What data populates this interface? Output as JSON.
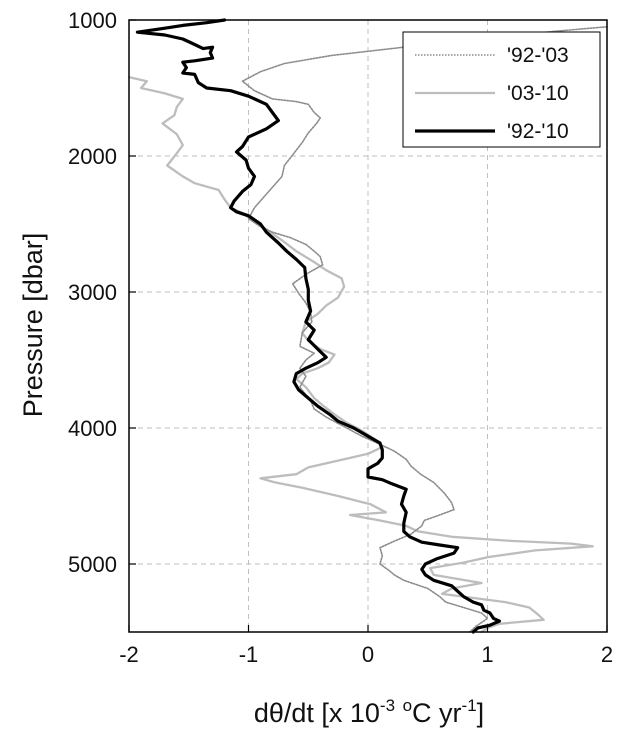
{
  "chart_data": {
    "type": "line",
    "title": "",
    "xlabel_parts": {
      "a": "dθ/dt [x 10",
      "b": "-3",
      "c": " ",
      "d": "o",
      "e": "C yr",
      "f": "-1",
      "g": "]"
    },
    "ylabel": "Pressure [dbar]",
    "xlim": [
      -2,
      2
    ],
    "ylim": [
      1000,
      5500
    ],
    "y_inverted": true,
    "grid": true,
    "legend_position": "top-right",
    "x_ticks": [
      {
        "value": -2,
        "label": "-2"
      },
      {
        "value": -1,
        "label": "-1"
      },
      {
        "value": 0,
        "label": "0"
      },
      {
        "value": 1,
        "label": "1"
      },
      {
        "value": 2,
        "label": "2"
      }
    ],
    "y_ticks": [
      {
        "value": 1000,
        "label": "1000"
      },
      {
        "value": 2000,
        "label": "2000"
      },
      {
        "value": 3000,
        "label": "3000"
      },
      {
        "value": 4000,
        "label": "4000"
      },
      {
        "value": 5000,
        "label": "5000"
      }
    ],
    "series": [
      {
        "name": "'92-'03",
        "color": "#8c8c8c",
        "style": "dotted",
        "points": [
          [
            2.0,
            1050
          ],
          [
            1.6,
            1080
          ],
          [
            1.0,
            1130
          ],
          [
            0.3,
            1200
          ],
          [
            -0.3,
            1260
          ],
          [
            -0.7,
            1320
          ],
          [
            -0.9,
            1380
          ],
          [
            -1.05,
            1450
          ],
          [
            -0.95,
            1520
          ],
          [
            -0.8,
            1580
          ],
          [
            -0.6,
            1600
          ],
          [
            -0.5,
            1620
          ],
          [
            -0.45,
            1680
          ],
          [
            -0.4,
            1720
          ],
          [
            -0.43,
            1760
          ],
          [
            -0.5,
            1830
          ],
          [
            -0.55,
            1900
          ],
          [
            -0.62,
            1980
          ],
          [
            -0.7,
            2070
          ],
          [
            -0.72,
            2150
          ],
          [
            -0.8,
            2230
          ],
          [
            -0.87,
            2300
          ],
          [
            -0.95,
            2380
          ],
          [
            -1.0,
            2460
          ],
          [
            -0.9,
            2520
          ],
          [
            -0.8,
            2560
          ],
          [
            -0.65,
            2600
          ],
          [
            -0.52,
            2650
          ],
          [
            -0.45,
            2700
          ],
          [
            -0.4,
            2740
          ],
          [
            -0.38,
            2800
          ],
          [
            -0.52,
            2870
          ],
          [
            -0.63,
            2940
          ],
          [
            -0.58,
            3010
          ],
          [
            -0.52,
            3080
          ],
          [
            -0.48,
            3150
          ],
          [
            -0.47,
            3220
          ],
          [
            -0.55,
            3300
          ],
          [
            -0.57,
            3400
          ],
          [
            -0.45,
            3450
          ],
          [
            -0.52,
            3500
          ],
          [
            -0.57,
            3560
          ],
          [
            -0.52,
            3620
          ],
          [
            -0.57,
            3700
          ],
          [
            -0.48,
            3800
          ],
          [
            -0.45,
            3860
          ],
          [
            -0.35,
            3920
          ],
          [
            -0.22,
            3980
          ],
          [
            -0.05,
            4060
          ],
          [
            0.1,
            4120
          ],
          [
            0.22,
            4170
          ],
          [
            0.32,
            4230
          ],
          [
            0.36,
            4280
          ],
          [
            0.44,
            4340
          ],
          [
            0.55,
            4400
          ],
          [
            0.64,
            4480
          ],
          [
            0.7,
            4550
          ],
          [
            0.72,
            4600
          ],
          [
            0.6,
            4640
          ],
          [
            0.47,
            4680
          ],
          [
            0.45,
            4720
          ],
          [
            0.36,
            4780
          ],
          [
            0.2,
            4840
          ],
          [
            0.1,
            4880
          ],
          [
            0.12,
            4940
          ],
          [
            0.1,
            5000
          ],
          [
            0.18,
            5050
          ],
          [
            0.22,
            5080
          ],
          [
            0.3,
            5120
          ],
          [
            0.5,
            5180
          ],
          [
            0.6,
            5240
          ],
          [
            0.65,
            5280
          ],
          [
            0.8,
            5320
          ],
          [
            0.95,
            5360
          ],
          [
            1.0,
            5400
          ],
          [
            0.9,
            5460
          ],
          [
            0.85,
            5500
          ]
        ]
      },
      {
        "name": "'03-'10",
        "color": "#bdbdbd",
        "style": "solid",
        "points": [
          [
            -2.0,
            1420
          ],
          [
            -1.85,
            1450
          ],
          [
            -1.9,
            1500
          ],
          [
            -1.7,
            1540
          ],
          [
            -1.55,
            1580
          ],
          [
            -1.6,
            1640
          ],
          [
            -1.62,
            1700
          ],
          [
            -1.72,
            1760
          ],
          [
            -1.6,
            1840
          ],
          [
            -1.55,
            1920
          ],
          [
            -1.6,
            1980
          ],
          [
            -1.68,
            2070
          ],
          [
            -1.55,
            2150
          ],
          [
            -1.45,
            2200
          ],
          [
            -1.25,
            2250
          ],
          [
            -1.2,
            2320
          ],
          [
            -1.15,
            2380
          ],
          [
            -1.05,
            2420
          ],
          [
            -0.95,
            2480
          ],
          [
            -0.85,
            2540
          ],
          [
            -0.72,
            2620
          ],
          [
            -0.6,
            2700
          ],
          [
            -0.45,
            2780
          ],
          [
            -0.35,
            2840
          ],
          [
            -0.22,
            2900
          ],
          [
            -0.2,
            2960
          ],
          [
            -0.25,
            3040
          ],
          [
            -0.35,
            3100
          ],
          [
            -0.42,
            3160
          ],
          [
            -0.52,
            3220
          ],
          [
            -0.55,
            3300
          ],
          [
            -0.5,
            3360
          ],
          [
            -0.4,
            3420
          ],
          [
            -0.28,
            3460
          ],
          [
            -0.33,
            3520
          ],
          [
            -0.42,
            3560
          ],
          [
            -0.55,
            3600
          ],
          [
            -0.6,
            3640
          ],
          [
            -0.52,
            3700
          ],
          [
            -0.45,
            3780
          ],
          [
            -0.37,
            3840
          ],
          [
            -0.28,
            3900
          ],
          [
            -0.18,
            3960
          ],
          [
            -0.05,
            4020
          ],
          [
            0.05,
            4080
          ],
          [
            0.12,
            4140
          ],
          [
            0.0,
            4190
          ],
          [
            -0.25,
            4240
          ],
          [
            -0.5,
            4290
          ],
          [
            -0.6,
            4340
          ],
          [
            -0.9,
            4370
          ],
          [
            -0.78,
            4400
          ],
          [
            -0.55,
            4440
          ],
          [
            -0.25,
            4500
          ],
          [
            0.02,
            4560
          ],
          [
            0.15,
            4620
          ],
          [
            -0.15,
            4640
          ],
          [
            0.1,
            4680
          ],
          [
            0.32,
            4720
          ],
          [
            0.42,
            4760
          ],
          [
            0.7,
            4800
          ],
          [
            1.2,
            4830
          ],
          [
            1.7,
            4850
          ],
          [
            1.88,
            4870
          ],
          [
            1.4,
            4900
          ],
          [
            1.0,
            4950
          ],
          [
            0.8,
            4990
          ],
          [
            0.52,
            5030
          ],
          [
            0.55,
            5080
          ],
          [
            0.95,
            5140
          ],
          [
            0.7,
            5180
          ],
          [
            0.62,
            5220
          ],
          [
            1.15,
            5280
          ],
          [
            1.35,
            5320
          ],
          [
            1.42,
            5370
          ],
          [
            1.47,
            5410
          ],
          [
            1.1,
            5440
          ],
          [
            1.0,
            5470
          ],
          [
            0.95,
            5500
          ]
        ]
      },
      {
        "name": "'92-'10",
        "color": "#000000",
        "style": "solid-thick",
        "points": [
          [
            -1.2,
            1000
          ],
          [
            -1.35,
            1020
          ],
          [
            -1.55,
            1040
          ],
          [
            -1.7,
            1060
          ],
          [
            -1.93,
            1090
          ],
          [
            -1.7,
            1110
          ],
          [
            -1.55,
            1140
          ],
          [
            -1.45,
            1180
          ],
          [
            -1.38,
            1210
          ],
          [
            -1.3,
            1200
          ],
          [
            -1.32,
            1240
          ],
          [
            -1.3,
            1280
          ],
          [
            -1.45,
            1300
          ],
          [
            -1.55,
            1310
          ],
          [
            -1.52,
            1350
          ],
          [
            -1.55,
            1390
          ],
          [
            -1.45,
            1400
          ],
          [
            -1.42,
            1460
          ],
          [
            -1.35,
            1500
          ],
          [
            -1.15,
            1520
          ],
          [
            -1.0,
            1560
          ],
          [
            -0.85,
            1620
          ],
          [
            -0.8,
            1680
          ],
          [
            -0.75,
            1740
          ],
          [
            -0.85,
            1800
          ],
          [
            -1.0,
            1860
          ],
          [
            -1.05,
            1930
          ],
          [
            -1.1,
            1970
          ],
          [
            -1.02,
            2030
          ],
          [
            -1.0,
            2090
          ],
          [
            -0.95,
            2150
          ],
          [
            -0.98,
            2210
          ],
          [
            -1.05,
            2260
          ],
          [
            -1.12,
            2330
          ],
          [
            -1.15,
            2380
          ],
          [
            -1.1,
            2410
          ],
          [
            -1.0,
            2440
          ],
          [
            -0.9,
            2500
          ],
          [
            -0.85,
            2560
          ],
          [
            -0.75,
            2640
          ],
          [
            -0.68,
            2700
          ],
          [
            -0.6,
            2760
          ],
          [
            -0.53,
            2820
          ],
          [
            -0.52,
            2900
          ],
          [
            -0.5,
            2980
          ],
          [
            -0.5,
            3060
          ],
          [
            -0.48,
            3140
          ],
          [
            -0.52,
            3220
          ],
          [
            -0.45,
            3280
          ],
          [
            -0.5,
            3350
          ],
          [
            -0.42,
            3420
          ],
          [
            -0.35,
            3480
          ],
          [
            -0.42,
            3520
          ],
          [
            -0.52,
            3560
          ],
          [
            -0.6,
            3600
          ],
          [
            -0.62,
            3660
          ],
          [
            -0.58,
            3720
          ],
          [
            -0.5,
            3780
          ],
          [
            -0.42,
            3840
          ],
          [
            -0.32,
            3900
          ],
          [
            -0.25,
            3950
          ],
          [
            -0.12,
            4000
          ],
          [
            0.0,
            4060
          ],
          [
            0.1,
            4110
          ],
          [
            0.12,
            4160
          ],
          [
            0.12,
            4220
          ],
          [
            0.08,
            4260
          ],
          [
            0.0,
            4300
          ],
          [
            0.0,
            4360
          ],
          [
            0.12,
            4380
          ],
          [
            0.2,
            4410
          ],
          [
            0.32,
            4450
          ],
          [
            0.3,
            4500
          ],
          [
            0.28,
            4560
          ],
          [
            0.32,
            4620
          ],
          [
            0.3,
            4700
          ],
          [
            0.3,
            4760
          ],
          [
            0.35,
            4800
          ],
          [
            0.45,
            4840
          ],
          [
            0.6,
            4860
          ],
          [
            0.75,
            4880
          ],
          [
            0.72,
            4920
          ],
          [
            0.58,
            4960
          ],
          [
            0.48,
            5000
          ],
          [
            0.45,
            5040
          ],
          [
            0.48,
            5080
          ],
          [
            0.55,
            5120
          ],
          [
            0.7,
            5160
          ],
          [
            0.75,
            5200
          ],
          [
            0.8,
            5240
          ],
          [
            0.88,
            5280
          ],
          [
            0.95,
            5300
          ],
          [
            0.97,
            5340
          ],
          [
            1.02,
            5360
          ],
          [
            1.05,
            5400
          ],
          [
            1.1,
            5420
          ],
          [
            1.02,
            5450
          ],
          [
            0.92,
            5470
          ],
          [
            0.88,
            5500
          ]
        ]
      }
    ]
  }
}
